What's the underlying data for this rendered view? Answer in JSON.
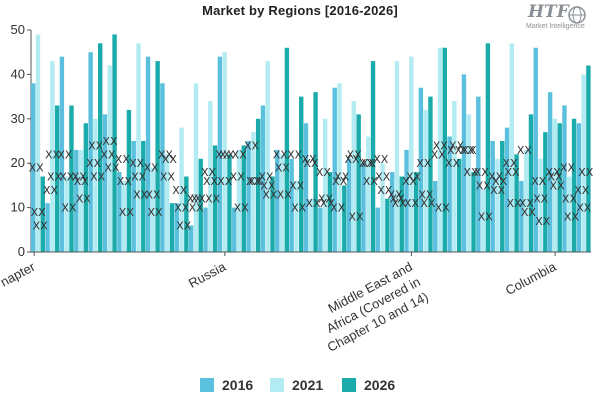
{
  "title": "Market by Regions [2016-2026]",
  "logo": {
    "mark": "HTF",
    "tagline": "Market Intelligence",
    "color": "#8a8f96"
  },
  "legend": [
    {
      "label": "2016",
      "color": "#5bc0de"
    },
    {
      "label": "2021",
      "color": "#b3ebf2"
    },
    {
      "label": "2026",
      "color": "#1aabaa"
    }
  ],
  "chart_data": {
    "type": "bar",
    "title": "Market by Regions [2016-2026]",
    "xlabel": "",
    "ylabel": "",
    "ylim": [
      0,
      50
    ],
    "yticks": [
      0,
      10,
      20,
      30,
      40,
      50
    ],
    "grid": false,
    "legend_position": "bottom",
    "x_tick_labels": [
      "napter",
      "Russia",
      "Middle East and Africa (Covered in Chapter 10 and 14)",
      "Columbia"
    ],
    "marker_symbol": "XX",
    "series": [
      {
        "name": "2016",
        "values": [
          38,
          11,
          44,
          23,
          45,
          31,
          18,
          25,
          44,
          38,
          11,
          6,
          10,
          44,
          10,
          25,
          33,
          23,
          21,
          29,
          10,
          37,
          21,
          20,
          10,
          18,
          23,
          37,
          16,
          26,
          40,
          35,
          25,
          28,
          16,
          46,
          36,
          33,
          29
        ]
      },
      {
        "name": "2021",
        "values": [
          49,
          43,
          17,
          23,
          30,
          42,
          16,
          47,
          19,
          22,
          28,
          38,
          34,
          45,
          23,
          27,
          43,
          22,
          16,
          12,
          30,
          38,
          34,
          26,
          20,
          43,
          44,
          32,
          46,
          34,
          31,
          14,
          21,
          47,
          23,
          21,
          30,
          17,
          40
        ]
      },
      {
        "name": "2026",
        "values": [
          17,
          33,
          33,
          29,
          47,
          49,
          32,
          25,
          43,
          11,
          17,
          21,
          24,
          22,
          24,
          30,
          17,
          46,
          35,
          36,
          18,
          15,
          31,
          43,
          12,
          17,
          18,
          35,
          46,
          21,
          18,
          47,
          25,
          22,
          31,
          27,
          29,
          30,
          42
        ]
      }
    ],
    "markers": [
      [
        19,
        14,
        22,
        17,
        20,
        22,
        21,
        20,
        19,
        22,
        14,
        12,
        18,
        22,
        17,
        24,
        17,
        22,
        22,
        21,
        18,
        10,
        21,
        20,
        21,
        13,
        16,
        20,
        22,
        20,
        23,
        18,
        17,
        20,
        23,
        16,
        18,
        19,
        14
      ],
      [
        9,
        22,
        17,
        16,
        24,
        25,
        16,
        17,
        13,
        17,
        10,
        10,
        16,
        16,
        22,
        16,
        15,
        19,
        15,
        20,
        12,
        16,
        22,
        20,
        17,
        12,
        11,
        13,
        24,
        23,
        23,
        15,
        14,
        18,
        11,
        12,
        17,
        12,
        10
      ],
      [
        6,
        17,
        10,
        12,
        17,
        19,
        9,
        13,
        9,
        21,
        6,
        12,
        12,
        22,
        10,
        16,
        13,
        13,
        10,
        11,
        11,
        17,
        8,
        16,
        14,
        11,
        17,
        11,
        10,
        24,
        18,
        8,
        16,
        11,
        9,
        7,
        15,
        8,
        18
      ]
    ]
  }
}
